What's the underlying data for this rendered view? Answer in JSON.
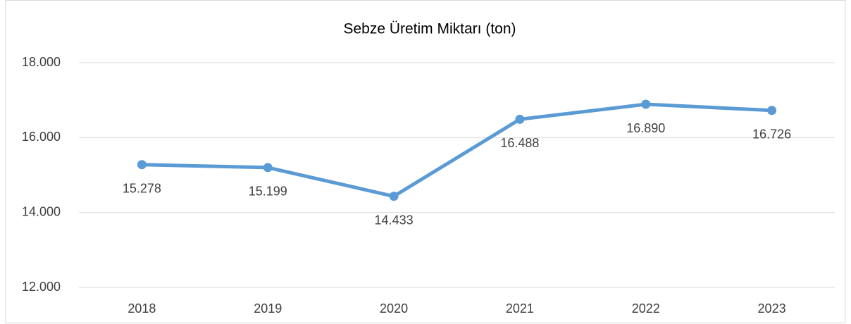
{
  "chart_data": {
    "type": "line",
    "title": "Sebze Üretim Miktarı (ton)",
    "categories": [
      "2018",
      "2019",
      "2020",
      "2021",
      "2022",
      "2023"
    ],
    "series": [
      {
        "name": "Sebze Üretim Miktarı (ton)",
        "color": "#5b9bd5",
        "values": [
          15278,
          15199,
          14433,
          16488,
          16890,
          16726
        ],
        "value_labels": [
          "15.278",
          "15.199",
          "14.433",
          "16.488",
          "16.890",
          "16.726"
        ]
      }
    ],
    "ylim": [
      12000,
      18000
    ],
    "yticks": [
      {
        "value": 12000,
        "label": "12.000"
      },
      {
        "value": 14000,
        "label": "14.000"
      },
      {
        "value": 16000,
        "label": "16.000"
      },
      {
        "value": 18000,
        "label": "18.000"
      }
    ],
    "grid": true
  }
}
